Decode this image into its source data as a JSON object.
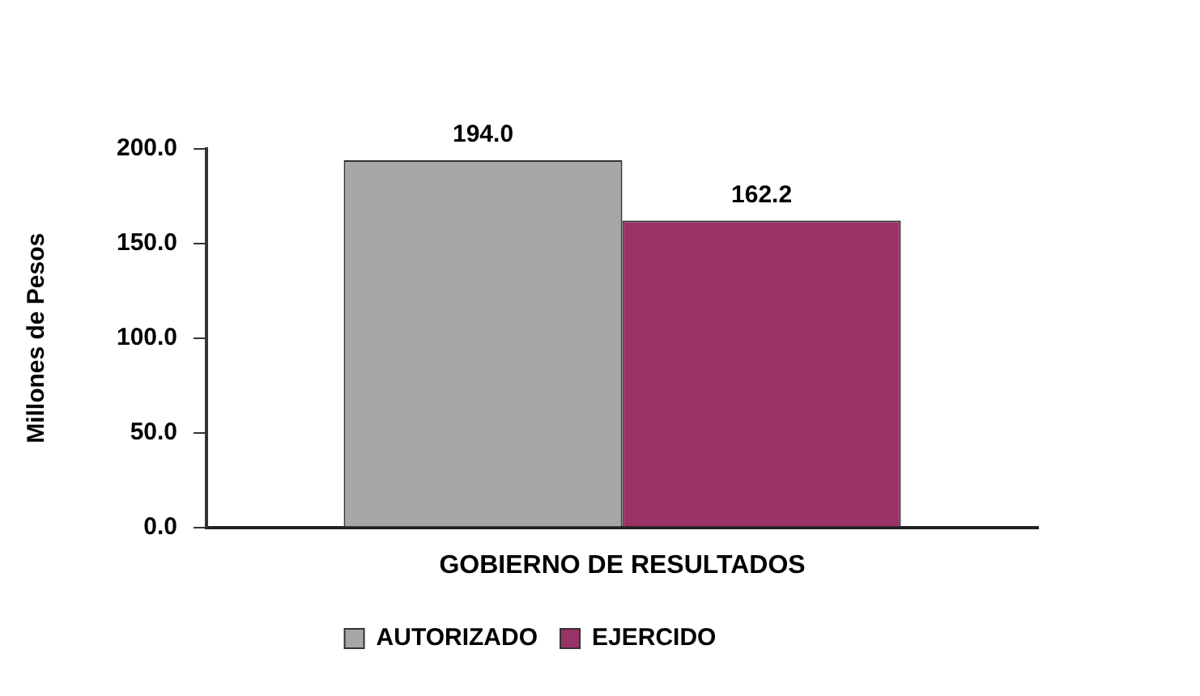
{
  "chart_data": {
    "type": "bar",
    "categories": [
      "GOBIERNO DE RESULTADOS"
    ],
    "ylabel": "Millones de Pesos",
    "series": [
      {
        "name": "AUTORIZADO",
        "color": "#a6a6a6",
        "values": [
          194.0
        ],
        "value_labels": [
          "194.0"
        ]
      },
      {
        "name": "EJERCIDO",
        "color": "#993366",
        "values": [
          162.2
        ],
        "value_labels": [
          "162.2"
        ]
      }
    ],
    "ylim": [
      0,
      200
    ],
    "yticks": [
      {
        "value": 0,
        "label": "0.0"
      },
      {
        "value": 50,
        "label": "50.0"
      },
      {
        "value": 100,
        "label": "100.0"
      },
      {
        "value": 150,
        "label": "150.0"
      },
      {
        "value": 200,
        "label": "200.0"
      }
    ],
    "legend": "bottom",
    "grid": false
  }
}
